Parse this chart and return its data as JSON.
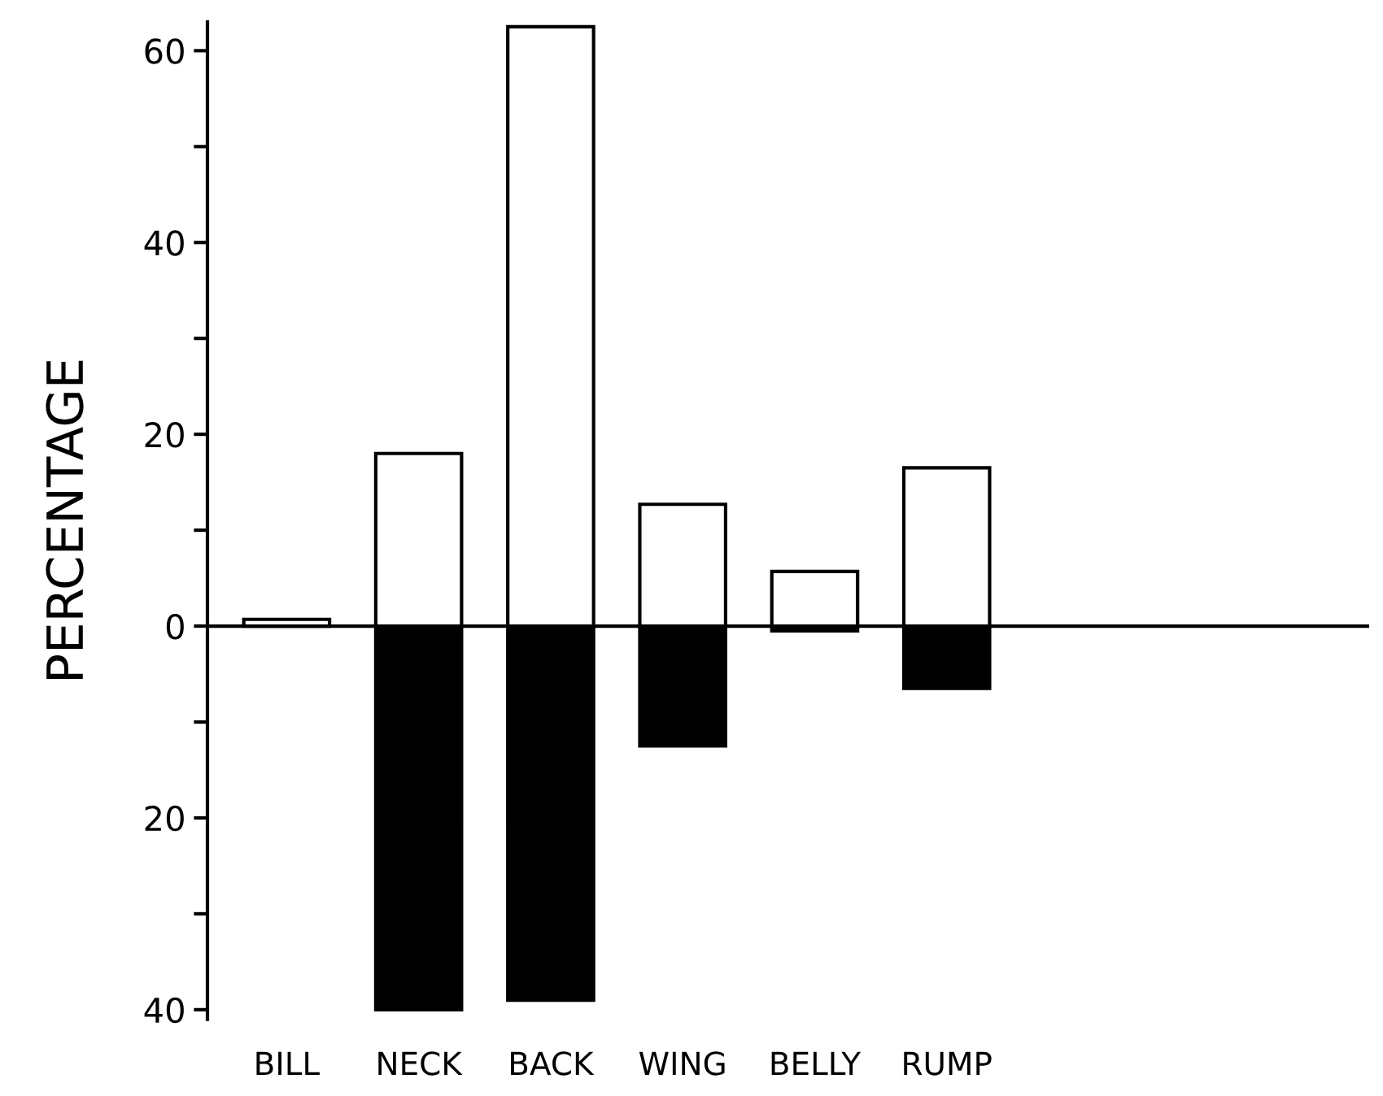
{
  "chart_data": {
    "type": "bar",
    "stacked": true,
    "ylabel": "PERCENTAGE",
    "categories": [
      "BILL",
      "NECK",
      "BACK",
      "WING",
      "BELLY",
      "RUMP"
    ],
    "series": [
      {
        "color": "#ffffff",
        "values": [
          0.7,
          18,
          62.5,
          12.7,
          5.7,
          16.5
        ]
      },
      {
        "color": "#000000",
        "values": [
          null,
          -40,
          -39,
          -12.5,
          -0.5,
          -6.5
        ]
      }
    ],
    "ylim": [
      -41,
      63
    ],
    "yticks": [
      {
        "value": -40,
        "label": "40"
      },
      {
        "value": -30,
        "label": null
      },
      {
        "value": -20,
        "label": "20"
      },
      {
        "value": -10,
        "label": null
      },
      0,
      {
        "value": 10,
        "label": null
      },
      20,
      {
        "value": 30,
        "label": null
      },
      40,
      {
        "value": 50,
        "label": null
      },
      60
    ],
    "ref_lines": [
      {
        "axis": "y",
        "value": 0,
        "color": "#000000"
      }
    ],
    "grid": false,
    "legend": false
  }
}
